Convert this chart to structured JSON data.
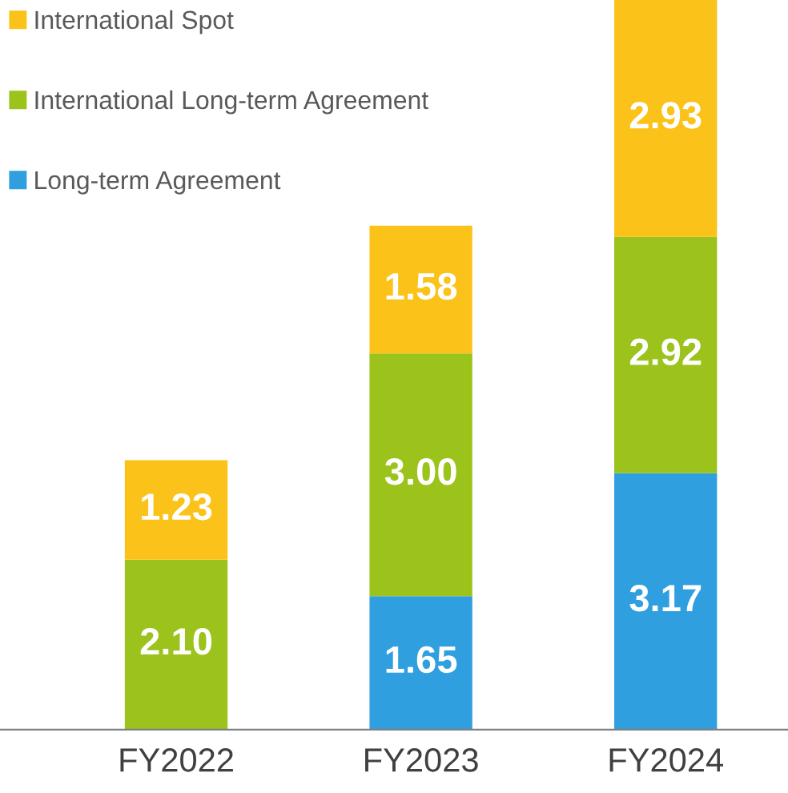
{
  "chart_data": {
    "type": "bar",
    "stacked": true,
    "categories": [
      "FY2022",
      "FY2023",
      "FY2024"
    ],
    "series": [
      {
        "name": "Long-term Agreement",
        "color": "#2f9fe0",
        "values": [
          null,
          1.65,
          3.17
        ],
        "value_labels": [
          null,
          "1.65",
          "3.17"
        ]
      },
      {
        "name": "International Long-term Agreement",
        "color": "#9cc31c",
        "values": [
          2.1,
          3.0,
          2.92
        ],
        "value_labels": [
          "2.10",
          "3.00",
          "2.92"
        ]
      },
      {
        "name": "International Spot",
        "color": "#fbc21a",
        "values": [
          1.23,
          1.58,
          2.93
        ],
        "value_labels": [
          "1.23",
          "1.58",
          "2.93"
        ]
      }
    ],
    "legend": "top left",
    "grid": false
  }
}
